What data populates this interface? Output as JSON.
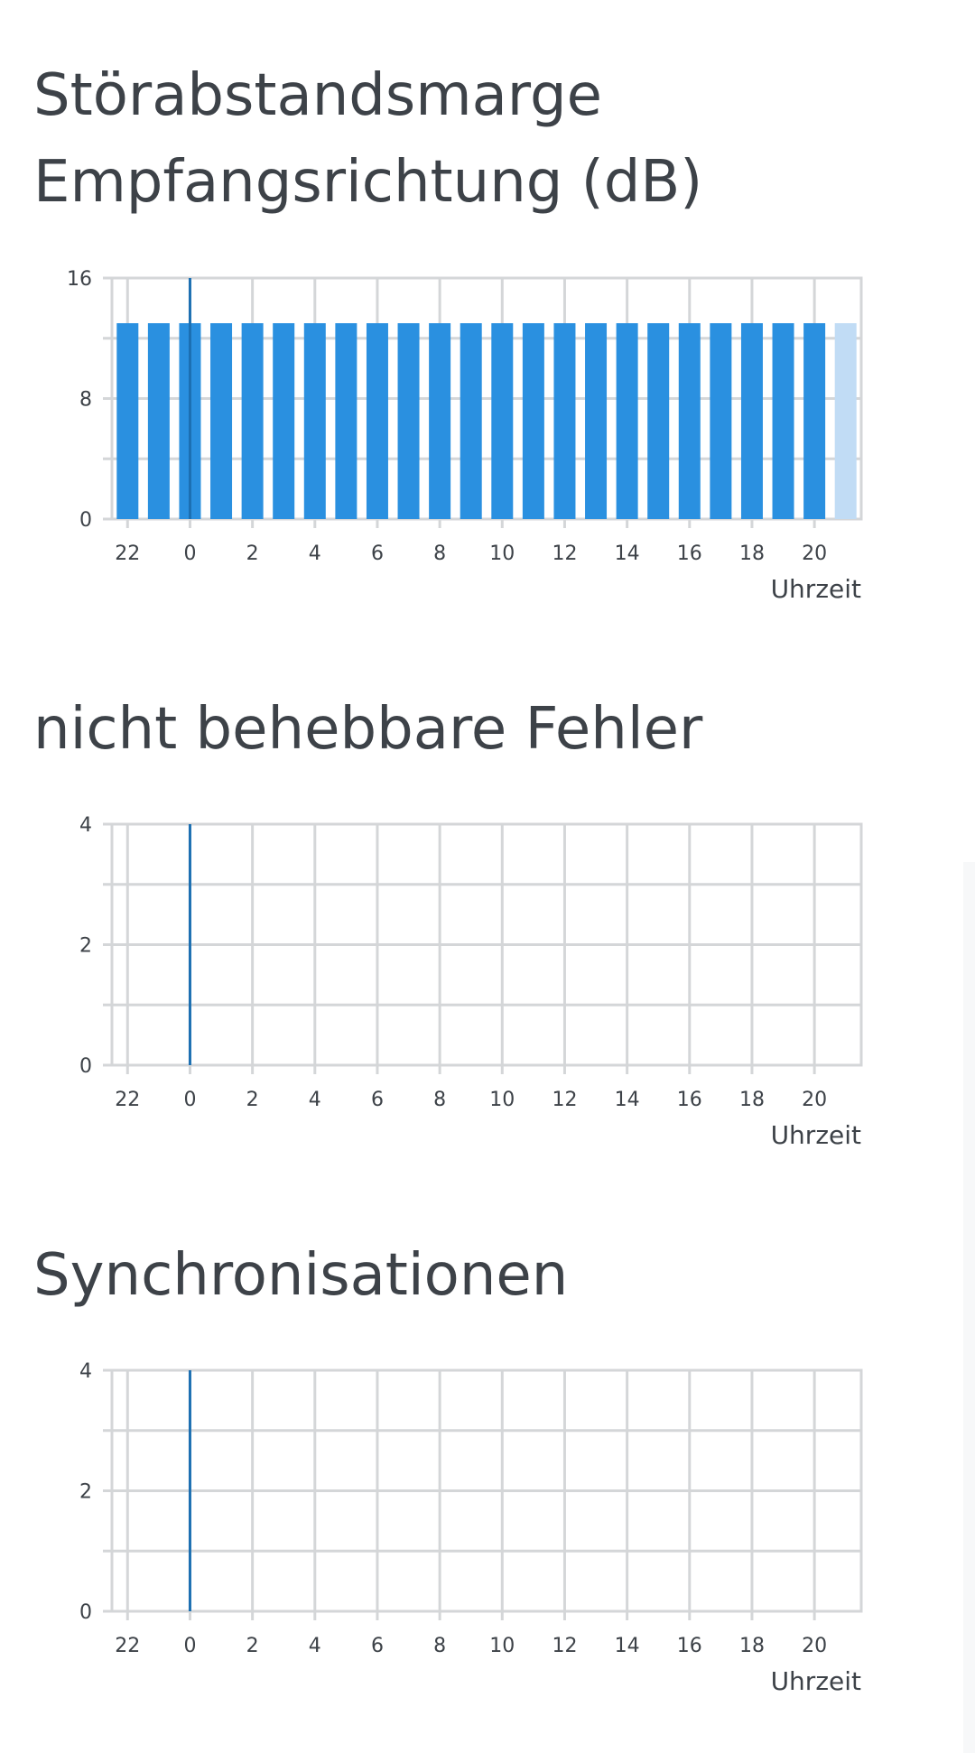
{
  "chart_data": [
    {
      "type": "bar",
      "title_lines": [
        "Störabstandsmarge",
        "Empfangsrichtung (dB)"
      ],
      "xlabel": "Uhrzeit",
      "ylabel": "",
      "ylim": [
        0,
        16
      ],
      "y_ticks": [
        0,
        8,
        16
      ],
      "x_tick_labels": [
        "22",
        "0",
        "2",
        "4",
        "6",
        "8",
        "10",
        "12",
        "14",
        "16",
        "18",
        "20"
      ],
      "categories": [
        "22",
        "23",
        "0",
        "1",
        "2",
        "3",
        "4",
        "5",
        "6",
        "7",
        "8",
        "9",
        "10",
        "11",
        "12",
        "13",
        "14",
        "15",
        "16",
        "17",
        "18",
        "19",
        "20",
        "21"
      ],
      "values": [
        13,
        13,
        13,
        13,
        13,
        13,
        13,
        13,
        13,
        13,
        13,
        13,
        13,
        13,
        13,
        13,
        13,
        13,
        13,
        13,
        13,
        13,
        13,
        13
      ],
      "current_hour": "21",
      "marker_at": "0",
      "grid": true,
      "colors": {
        "bar": "#2a90e0",
        "bar_current": "#c1dcf5",
        "marker": "#1c6fb2"
      }
    },
    {
      "type": "bar",
      "title_lines": [
        "nicht behebbare Fehler"
      ],
      "xlabel": "Uhrzeit",
      "ylabel": "",
      "ylim": [
        0,
        4
      ],
      "y_ticks": [
        0,
        2,
        4
      ],
      "x_tick_labels": [
        "22",
        "0",
        "2",
        "4",
        "6",
        "8",
        "10",
        "12",
        "14",
        "16",
        "18",
        "20"
      ],
      "categories": [
        "22",
        "23",
        "0",
        "1",
        "2",
        "3",
        "4",
        "5",
        "6",
        "7",
        "8",
        "9",
        "10",
        "11",
        "12",
        "13",
        "14",
        "15",
        "16",
        "17",
        "18",
        "19",
        "20",
        "21"
      ],
      "values": [
        0,
        0,
        0,
        0,
        0,
        0,
        0,
        0,
        0,
        0,
        0,
        0,
        0,
        0,
        0,
        0,
        0,
        0,
        0,
        0,
        0,
        0,
        0,
        0
      ],
      "marker_at": "0",
      "grid": true,
      "colors": {
        "bar": "#2a90e0",
        "bar_current": "#c1dcf5",
        "marker": "#1c6fb2"
      }
    },
    {
      "type": "bar",
      "title_lines": [
        "Synchronisationen"
      ],
      "xlabel": "Uhrzeit",
      "ylabel": "",
      "ylim": [
        0,
        4
      ],
      "y_ticks": [
        0,
        2,
        4
      ],
      "x_tick_labels": [
        "22",
        "0",
        "2",
        "4",
        "6",
        "8",
        "10",
        "12",
        "14",
        "16",
        "18",
        "20"
      ],
      "categories": [
        "22",
        "23",
        "0",
        "1",
        "2",
        "3",
        "4",
        "5",
        "6",
        "7",
        "8",
        "9",
        "10",
        "11",
        "12",
        "13",
        "14",
        "15",
        "16",
        "17",
        "18",
        "19",
        "20",
        "21"
      ],
      "values": [
        0,
        0,
        0,
        0,
        0,
        0,
        0,
        0,
        0,
        0,
        0,
        0,
        0,
        0,
        0,
        0,
        0,
        0,
        0,
        0,
        0,
        0,
        0,
        0
      ],
      "marker_at": "0",
      "grid": true,
      "colors": {
        "bar": "#2a90e0",
        "bar_current": "#c1dcf5",
        "marker": "#1c6fb2"
      }
    }
  ]
}
